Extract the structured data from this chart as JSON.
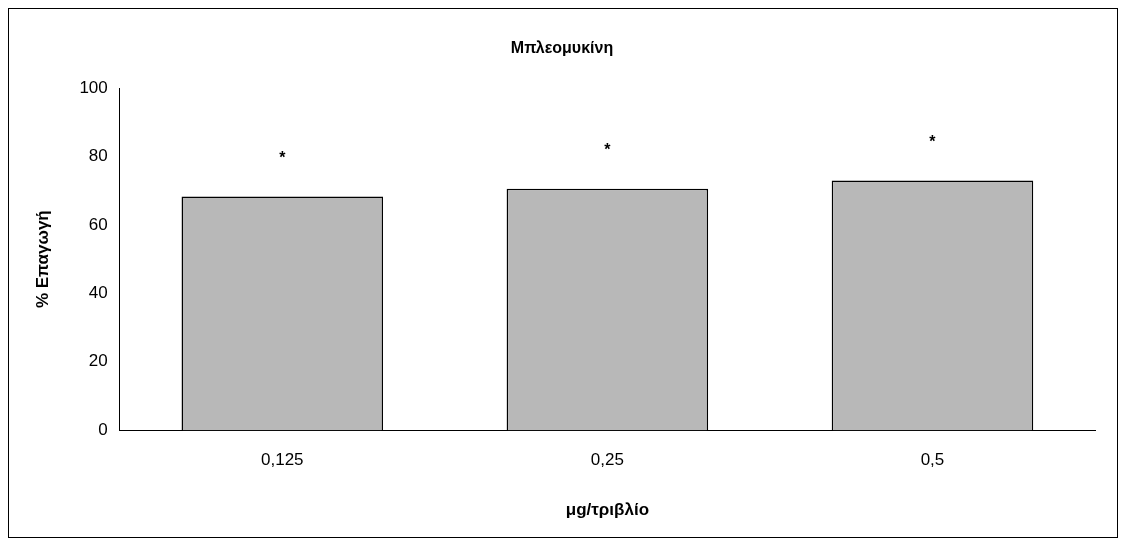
{
  "chart_data": {
    "type": "bar",
    "title": "Μπλεομυκίνη",
    "xlabel": "μg/τριβλίο",
    "ylabel": "% Επαγωγή",
    "categories": [
      "0,125",
      "0,25",
      "0,5"
    ],
    "values": [
      68.3,
      70.6,
      73
    ],
    "color": "#b8b8b8",
    "ylim": [
      0,
      100
    ],
    "yticks": [
      0,
      20,
      40,
      60,
      80,
      100
    ],
    "grid": false,
    "legend": false,
    "annotations": [
      "*",
      "*",
      "*"
    ]
  }
}
